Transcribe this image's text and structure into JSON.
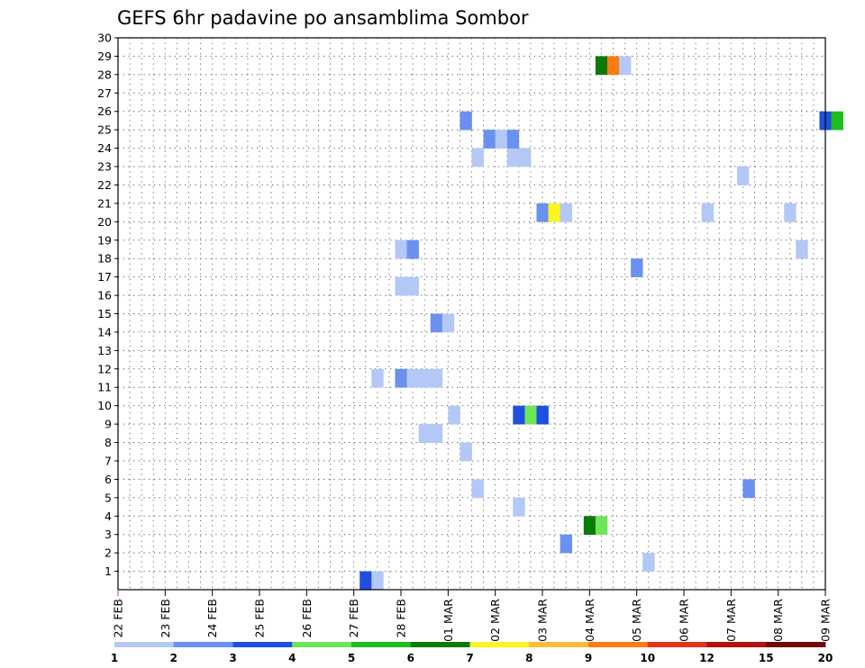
{
  "chart_data": {
    "type": "heatmap",
    "title": "GEFS 6hr padavine po ansamblima Sombor",
    "xlabel": "",
    "ylabel": "",
    "x_tick_labels": [
      "22 FEB",
      "23 FEB",
      "24 FEB",
      "25 FEB",
      "26 FEB",
      "27 FEB",
      "28 FEB",
      "01 MAR",
      "02 MAR",
      "03 MAR",
      "04 MAR",
      "05 MAR",
      "06 MAR",
      "07 MAR",
      "08 MAR",
      "09 MAR"
    ],
    "y_tick_labels": [
      "1",
      "2",
      "3",
      "4",
      "5",
      "6",
      "7",
      "8",
      "9",
      "10",
      "11",
      "12",
      "13",
      "14",
      "15",
      "16",
      "17",
      "18",
      "19",
      "20",
      "21",
      "22",
      "23",
      "24",
      "25",
      "26",
      "27",
      "28",
      "29",
      "30"
    ],
    "x_unit": "6-hour step from 22 FEB 00Z",
    "xlim": [
      0,
      60
    ],
    "ylim": [
      0,
      30
    ],
    "grid": true,
    "legend_position": "bottom",
    "colorbar": {
      "colors": [
        "#b3c8f7",
        "#6a91f0",
        "#1e4fe0",
        "#6ee65a",
        "#1ebd1e",
        "#0a7a0a",
        "#fff51e",
        "#ffbb3a",
        "#ff7a0f",
        "#e0331a",
        "#b0120e",
        "#6e0a0a"
      ],
      "labels": [
        "1",
        "2",
        "3",
        "4",
        "5",
        "6",
        "7",
        "8",
        "9",
        "10",
        "12",
        "15",
        "20"
      ]
    },
    "cells": [
      {
        "member": 0,
        "step": 20.5,
        "bin": 2
      },
      {
        "member": 0,
        "step": 21.5,
        "bin": 0
      },
      {
        "member": 1,
        "step": 44.5,
        "bin": 0
      },
      {
        "member": 2,
        "step": 37.5,
        "bin": 1
      },
      {
        "member": 3,
        "step": 39.5,
        "bin": 5
      },
      {
        "member": 3,
        "step": 40.5,
        "bin": 3
      },
      {
        "member": 4,
        "step": 33.5,
        "bin": 0
      },
      {
        "member": 5,
        "step": 30.0,
        "bin": 0
      },
      {
        "member": 5,
        "step": 53.0,
        "bin": 1
      },
      {
        "member": 7,
        "step": 29.0,
        "bin": 0
      },
      {
        "member": 8,
        "step": 25.5,
        "bin": 0
      },
      {
        "member": 8,
        "step": 26.5,
        "bin": 0
      },
      {
        "member": 9,
        "step": 28.0,
        "bin": 0
      },
      {
        "member": 9,
        "step": 33.5,
        "bin": 2
      },
      {
        "member": 9,
        "step": 34.5,
        "bin": 3
      },
      {
        "member": 9,
        "step": 35.5,
        "bin": 2
      },
      {
        "member": 11,
        "step": 21.5,
        "bin": 0
      },
      {
        "member": 11,
        "step": 23.5,
        "bin": 1
      },
      {
        "member": 11,
        "step": 24.5,
        "bin": 0
      },
      {
        "member": 11,
        "step": 25.5,
        "bin": 0
      },
      {
        "member": 11,
        "step": 26.5,
        "bin": 0
      },
      {
        "member": 14,
        "step": 26.5,
        "bin": 1
      },
      {
        "member": 14,
        "step": 27.5,
        "bin": 0
      },
      {
        "member": 16,
        "step": 23.5,
        "bin": 0
      },
      {
        "member": 16,
        "step": 24.5,
        "bin": 0
      },
      {
        "member": 17,
        "step": 43.5,
        "bin": 1
      },
      {
        "member": 18,
        "step": 23.5,
        "bin": 0
      },
      {
        "member": 18,
        "step": 24.5,
        "bin": 1
      },
      {
        "member": 18,
        "step": 57.5,
        "bin": 0
      },
      {
        "member": 20,
        "step": 35.5,
        "bin": 1
      },
      {
        "member": 20,
        "step": 36.5,
        "bin": 6
      },
      {
        "member": 20,
        "step": 37.5,
        "bin": 0
      },
      {
        "member": 20,
        "step": 49.5,
        "bin": 0
      },
      {
        "member": 20,
        "step": 56.5,
        "bin": 0
      },
      {
        "member": 22,
        "step": 52.5,
        "bin": 0
      },
      {
        "member": 23,
        "step": 30.0,
        "bin": 0
      },
      {
        "member": 23,
        "step": 33.0,
        "bin": 0
      },
      {
        "member": 23,
        "step": 34.0,
        "bin": 0
      },
      {
        "member": 24,
        "step": 31.0,
        "bin": 1
      },
      {
        "member": 24,
        "step": 32.0,
        "bin": 0
      },
      {
        "member": 24,
        "step": 33.0,
        "bin": 1
      },
      {
        "member": 25,
        "step": 29.0,
        "bin": 1
      },
      {
        "member": 25,
        "step": 59.5,
        "bin": 2
      },
      {
        "member": 25,
        "step": 60.5,
        "bin": 4
      },
      {
        "member": 28,
        "step": 40.5,
        "bin": 5
      },
      {
        "member": 28,
        "step": 41.5,
        "bin": 8
      },
      {
        "member": 28,
        "step": 42.5,
        "bin": 0
      }
    ]
  }
}
